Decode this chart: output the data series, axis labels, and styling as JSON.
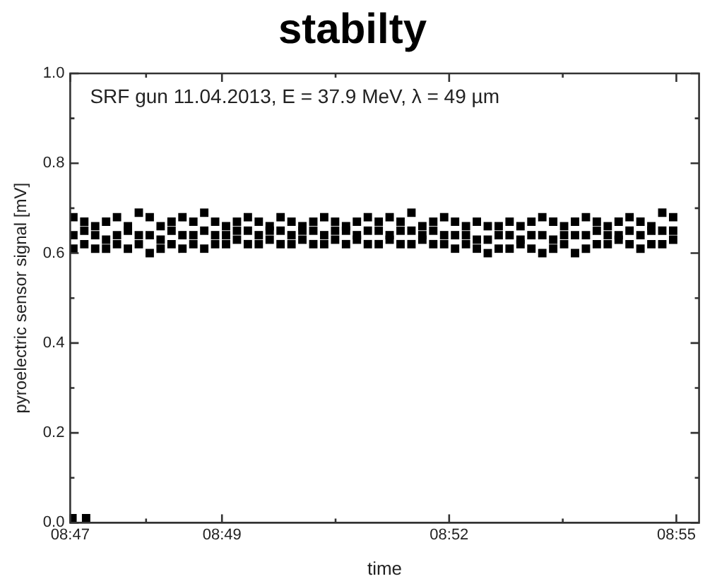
{
  "chart_data": {
    "type": "scatter",
    "title": "stabilty",
    "xlabel": "time",
    "ylabel": "pyroelectric sensor signal [mV]",
    "annotations": [
      "SRF gun 11.04.2013, E = 37.9 MeV, λ = 49 µm"
    ],
    "x": [
      8.784,
      8.7864,
      8.7888,
      8.7912,
      8.7936,
      8.796,
      8.7984,
      8.8008,
      8.8032,
      8.8056,
      8.808,
      8.8104,
      8.8128,
      8.8152,
      8.8176,
      8.82,
      8.8224,
      8.8248,
      8.8272,
      8.8296,
      8.832,
      8.8344,
      8.8368,
      8.8392,
      8.8416,
      8.844,
      8.8464,
      8.8488,
      8.8512,
      8.8536,
      8.856,
      8.8584,
      8.8608,
      8.8632,
      8.8656,
      8.868,
      8.8704,
      8.8728,
      8.8752,
      8.8776,
      8.88,
      8.8824,
      8.8848,
      8.8872,
      8.8896,
      8.892,
      8.8944,
      8.8968,
      8.8992,
      8.9016,
      8.904,
      8.9064,
      8.9088,
      8.9112,
      8.9136,
      8.916
    ],
    "series": [
      {
        "color": "#000000",
        "values": [
          0.68,
          0.67,
          0.66,
          0.67,
          0.68,
          0.66,
          0.69,
          0.68,
          0.66,
          0.67,
          0.68,
          0.67,
          0.69,
          0.67,
          0.66,
          0.67,
          0.68,
          0.67,
          0.66,
          0.68,
          0.67,
          0.66,
          0.67,
          0.68,
          0.67,
          0.66,
          0.67,
          0.68,
          0.67,
          0.68,
          0.67,
          0.69,
          0.66,
          0.67,
          0.68,
          0.67,
          0.66,
          0.67,
          0.66,
          0.66,
          0.67,
          0.66,
          0.67,
          0.68,
          0.67,
          0.66,
          0.67,
          0.68,
          0.67,
          0.66,
          0.67,
          0.68,
          0.67,
          0.66,
          0.69,
          0.68
        ]
      },
      {
        "color": "#000000",
        "values": [
          0.64,
          0.65,
          0.64,
          0.63,
          0.64,
          0.65,
          0.64,
          0.64,
          0.63,
          0.65,
          0.64,
          0.64,
          0.65,
          0.64,
          0.64,
          0.65,
          0.65,
          0.64,
          0.65,
          0.65,
          0.64,
          0.65,
          0.65,
          0.64,
          0.65,
          0.65,
          0.64,
          0.65,
          0.65,
          0.64,
          0.65,
          0.65,
          0.64,
          0.65,
          0.64,
          0.64,
          0.64,
          0.63,
          0.63,
          0.64,
          0.64,
          0.63,
          0.64,
          0.64,
          0.63,
          0.64,
          0.64,
          0.64,
          0.65,
          0.64,
          0.64,
          0.65,
          0.64,
          0.65,
          0.65,
          0.65
        ]
      },
      {
        "color": "#000000",
        "values": [
          0.61,
          0.62,
          0.61,
          0.61,
          0.62,
          0.61,
          0.62,
          0.6,
          0.61,
          0.62,
          0.61,
          0.62,
          0.61,
          0.62,
          0.62,
          0.63,
          0.62,
          0.62,
          0.63,
          0.62,
          0.62,
          0.63,
          0.62,
          0.62,
          0.63,
          0.62,
          0.63,
          0.62,
          0.62,
          0.63,
          0.62,
          0.62,
          0.63,
          0.62,
          0.62,
          0.61,
          0.62,
          0.61,
          0.6,
          0.61,
          0.61,
          0.62,
          0.61,
          0.6,
          0.61,
          0.62,
          0.6,
          0.61,
          0.62,
          0.62,
          0.63,
          0.62,
          0.61,
          0.62,
          0.62,
          0.63
        ]
      },
      {
        "color": "#000000",
        "x": [
          8.7838,
          8.7868
        ],
        "values": [
          0.01,
          0.01
        ]
      }
    ],
    "xlim": [
      8.7833,
      8.9217
    ],
    "xticks": [
      {
        "value": 8.7833,
        "label": "08:47"
      },
      {
        "value": 8.8,
        "label": null
      },
      {
        "value": 8.8167,
        "label": "08:49"
      },
      {
        "value": 8.8417,
        "label": null
      },
      {
        "value": 8.8667,
        "label": "08:52"
      },
      {
        "value": 8.8917,
        "label": null
      },
      {
        "value": 8.9167,
        "label": "08:55"
      }
    ],
    "ylim": [
      0,
      1
    ],
    "yticks": [
      {
        "value": 0,
        "label": "0.0"
      },
      {
        "value": 0.1,
        "label": null
      },
      0.2,
      {
        "value": 0.3,
        "label": null
      },
      0.4,
      {
        "value": 0.5,
        "label": null
      },
      0.6,
      {
        "value": 0.7,
        "label": null
      },
      0.8,
      {
        "value": 0.9,
        "label": null
      },
      {
        "value": 1,
        "label": "1.0"
      }
    ],
    "marker": "square",
    "legend": false,
    "grid": false
  }
}
